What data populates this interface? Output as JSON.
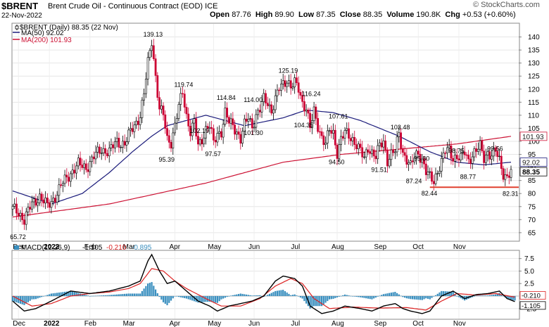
{
  "header": {
    "symbol": "$BRENT",
    "name": "Brent Crude Oil - Continuous Contract (EOD)",
    "exchange": "ICE",
    "date": "22-Nov-2022",
    "watermark": "© StockCharts.com",
    "open_label": "Open",
    "open": "87.76",
    "high_label": "High",
    "high": "89.90",
    "low_label": "Low",
    "low": "87.35",
    "close_label": "Close",
    "close": "88.35",
    "volume_label": "Volume",
    "volume": "190.8K",
    "chg_label": "Chg",
    "chg": "+0.53 (+0.60%)"
  },
  "colors": {
    "up": "#000000",
    "down": "#cc0033",
    "ma50": "#1a1a7a",
    "ma200": "#cc1133",
    "macd": "#000000",
    "signal": "#dd2222",
    "hist": "#3a8fbf",
    "support": "#e0402e"
  },
  "chart_data": [
    {
      "type": "candlestick",
      "title": "$BRENT Brent Crude Oil - Continuous Contract (EOD) ICE",
      "legend": [
        {
          "label": "$BRENT (Daily) 88.35 (22 Nov)",
          "marker": "candle"
        },
        {
          "label": "MA(50) 92.02",
          "color": "#1a1a7a"
        },
        {
          "label": "MA(200) 101.93",
          "color": "#cc1133"
        }
      ],
      "ylim": [
        62,
        145
      ],
      "yticks": [
        65,
        70,
        75,
        80,
        85,
        90,
        95,
        100,
        105,
        110,
        115,
        120,
        125,
        130,
        135,
        140
      ],
      "x_labels": [
        "Dec",
        "2022",
        "Feb",
        "Mar",
        "Apr",
        "May",
        "Jun",
        "Jul",
        "Aug",
        "Sep",
        "Oct",
        "Nov"
      ],
      "close_path": [
        [
          0,
          74
        ],
        [
          3,
          73
        ],
        [
          6,
          70
        ],
        [
          10,
          76
        ],
        [
          14,
          79
        ],
        [
          18,
          75
        ],
        [
          22,
          79
        ],
        [
          26,
          84
        ],
        [
          30,
          88
        ],
        [
          34,
          91
        ],
        [
          38,
          90
        ],
        [
          42,
          94
        ],
        [
          46,
          97
        ],
        [
          50,
          96
        ],
        [
          54,
          100
        ],
        [
          58,
          99
        ],
        [
          62,
          105
        ],
        [
          66,
          110
        ],
        [
          68,
          118
        ],
        [
          70,
          130
        ],
        [
          72,
          139
        ],
        [
          74,
          125
        ],
        [
          76,
          112
        ],
        [
          78,
          110
        ],
        [
          80,
          101
        ],
        [
          82,
          100
        ],
        [
          84,
          106
        ],
        [
          86,
          113
        ],
        [
          88,
          119
        ],
        [
          90,
          110
        ],
        [
          92,
          104
        ],
        [
          94,
          107
        ],
        [
          96,
          98
        ],
        [
          98,
          101
        ],
        [
          100,
          105
        ],
        [
          102,
          106
        ],
        [
          104,
          99
        ],
        [
          106,
          103
        ],
        [
          108,
          104
        ],
        [
          110,
          111
        ],
        [
          112,
          107
        ],
        [
          114,
          106
        ],
        [
          116,
          104
        ],
        [
          118,
          101
        ],
        [
          120,
          106
        ],
        [
          122,
          109
        ],
        [
          124,
          106
        ],
        [
          126,
          110
        ],
        [
          128,
          112
        ],
        [
          130,
          116
        ],
        [
          132,
          115
        ],
        [
          134,
          112
        ],
        [
          136,
          116
        ],
        [
          138,
          120
        ],
        [
          140,
          122
        ],
        [
          142,
          124
        ],
        [
          144,
          121
        ],
        [
          146,
          122
        ],
        [
          148,
          120
        ],
        [
          150,
          115
        ],
        [
          152,
          113
        ],
        [
          154,
          105
        ],
        [
          156,
          111
        ],
        [
          158,
          106
        ],
        [
          160,
          102
        ],
        [
          162,
          99
        ],
        [
          164,
          104
        ],
        [
          166,
          103
        ],
        [
          168,
          96
        ],
        [
          170,
          101
        ],
        [
          172,
          103
        ],
        [
          174,
          102
        ],
        [
          176,
          101
        ],
        [
          178,
          99
        ],
        [
          180,
          96
        ],
        [
          182,
          93
        ],
        [
          184,
          98
        ],
        [
          186,
          96
        ],
        [
          188,
          94
        ],
        [
          190,
          98
        ],
        [
          192,
          100
        ],
        [
          194,
          93
        ],
        [
          196,
          95
        ],
        [
          198,
          96
        ],
        [
          200,
          103
        ],
        [
          202,
          96
        ],
        [
          204,
          93
        ],
        [
          206,
          90
        ],
        [
          208,
          94
        ],
        [
          210,
          96
        ],
        [
          212,
          93
        ],
        [
          214,
          88
        ],
        [
          216,
          86
        ],
        [
          218,
          85
        ],
        [
          220,
          89
        ],
        [
          222,
          92
        ],
        [
          224,
          96
        ],
        [
          226,
          97
        ],
        [
          228,
          94
        ],
        [
          230,
          94
        ],
        [
          232,
          93
        ],
        [
          234,
          96
        ],
        [
          236,
          93
        ],
        [
          238,
          95
        ],
        [
          240,
          96
        ],
        [
          242,
          98
        ],
        [
          244,
          94
        ],
        [
          246,
          96
        ],
        [
          248,
          94
        ],
        [
          250,
          96
        ],
        [
          252,
          93
        ],
        [
          254,
          88
        ],
        [
          256,
          86
        ],
        [
          258,
          88
        ]
      ],
      "ma50": [
        [
          0,
          81
        ],
        [
          20,
          76
        ],
        [
          36,
          80
        ],
        [
          50,
          88
        ],
        [
          62,
          96
        ],
        [
          72,
          102
        ],
        [
          80,
          106
        ],
        [
          100,
          110
        ],
        [
          120,
          106
        ],
        [
          140,
          109
        ],
        [
          152,
          112
        ],
        [
          166,
          111
        ],
        [
          180,
          108
        ],
        [
          200,
          102
        ],
        [
          216,
          96
        ],
        [
          230,
          92
        ],
        [
          244,
          91
        ],
        [
          258,
          92.02
        ]
      ],
      "ma200": [
        [
          0,
          71
        ],
        [
          50,
          76
        ],
        [
          100,
          84
        ],
        [
          140,
          92
        ],
        [
          170,
          95
        ],
        [
          200,
          97
        ],
        [
          230,
          99
        ],
        [
          258,
          101.93
        ]
      ],
      "annotations": [
        {
          "text": "65.72",
          "x": 3,
          "y": 65.72
        },
        {
          "text": "139.13",
          "x": 72,
          "y": 139.13
        },
        {
          "text": "95.39",
          "x": 80,
          "y": 95.39
        },
        {
          "text": "119.74",
          "x": 88,
          "y": 119.74
        },
        {
          "text": "102.19",
          "x": 96,
          "y": 102.19
        },
        {
          "text": "97.57",
          "x": 104,
          "y": 97.57
        },
        {
          "text": "114.84",
          "x": 110,
          "y": 114.84
        },
        {
          "text": "114.00",
          "x": 124,
          "y": 114.0
        },
        {
          "text": "101.30",
          "x": 124,
          "y": 101.3
        },
        {
          "text": "125.19",
          "x": 142,
          "y": 125.19
        },
        {
          "text": "116.24",
          "x": 154,
          "y": 116.24
        },
        {
          "text": "104.35",
          "x": 150,
          "y": 104.35
        },
        {
          "text": "107.61",
          "x": 168,
          "y": 107.61
        },
        {
          "text": "94.50",
          "x": 168,
          "y": 94.5
        },
        {
          "text": "91.51",
          "x": 190,
          "y": 91.51
        },
        {
          "text": "103.48",
          "x": 200,
          "y": 103.48
        },
        {
          "text": "95.80",
          "x": 212,
          "y": 95.8
        },
        {
          "text": "87.24",
          "x": 208,
          "y": 87.24
        },
        {
          "text": "82.44",
          "x": 216,
          "y": 82.44
        },
        {
          "text": "98.75",
          "x": 230,
          "y": 98.75
        },
        {
          "text": "88.77",
          "x": 236,
          "y": 88.77
        },
        {
          "text": "99.56",
          "x": 250,
          "y": 99.56
        },
        {
          "text": "82.31",
          "x": 258,
          "y": 82.31
        }
      ],
      "support_line": {
        "y": 82.4,
        "x_start": 216,
        "x_end": 262
      },
      "price_tags": [
        {
          "text": "101.93",
          "y": 101.93,
          "series": "ma200"
        },
        {
          "text": "92.02",
          "y": 92.02,
          "series": "ma50"
        },
        {
          "text": "88.35",
          "y": 88.35,
          "series": "price"
        }
      ]
    },
    {
      "type": "macd",
      "legend": {
        "label": "MACD(12,26,9)",
        "macd": "-1.105",
        "signal": "-0.210",
        "hist": "-0.895"
      },
      "ylim": [
        -4.5,
        9
      ],
      "yticks": [
        -2.5,
        2.5,
        5.0,
        7.5
      ],
      "ytick_labels": [
        "-2.5",
        "2.5",
        "5.0",
        "7.5"
      ],
      "value_tags": [
        {
          "text": "-0.210",
          "y": -0.21,
          "series": "signal"
        },
        {
          "text": "-1.105",
          "y": -1.105,
          "series": "macd"
        }
      ],
      "macd": [
        [
          0,
          -1
        ],
        [
          6,
          -3
        ],
        [
          12,
          -2.5
        ],
        [
          20,
          -1
        ],
        [
          30,
          1
        ],
        [
          40,
          0.5
        ],
        [
          50,
          1
        ],
        [
          60,
          2
        ],
        [
          66,
          3
        ],
        [
          70,
          7
        ],
        [
          72,
          8.3
        ],
        [
          76,
          5
        ],
        [
          80,
          2.5
        ],
        [
          84,
          3
        ],
        [
          90,
          1
        ],
        [
          96,
          -1
        ],
        [
          102,
          -2
        ],
        [
          106,
          -3
        ],
        [
          112,
          -2
        ],
        [
          118,
          -1.5
        ],
        [
          124,
          -1
        ],
        [
          130,
          0
        ],
        [
          136,
          3
        ],
        [
          140,
          4
        ],
        [
          146,
          3.5
        ],
        [
          150,
          2
        ],
        [
          154,
          -2
        ],
        [
          160,
          -3.5
        ],
        [
          166,
          -3
        ],
        [
          172,
          -2
        ],
        [
          180,
          -2.5
        ],
        [
          186,
          -3
        ],
        [
          192,
          -2
        ],
        [
          198,
          -1.5
        ],
        [
          202,
          -2.5
        ],
        [
          206,
          -3
        ],
        [
          212,
          -3.5
        ],
        [
          216,
          -3
        ],
        [
          222,
          0
        ],
        [
          228,
          1
        ],
        [
          234,
          -0.5
        ],
        [
          240,
          0.3
        ],
        [
          246,
          0.5
        ],
        [
          252,
          1
        ],
        [
          256,
          -0.5
        ],
        [
          260,
          -1.105
        ]
      ],
      "signal": [
        [
          0,
          0
        ],
        [
          10,
          -2
        ],
        [
          20,
          -1.5
        ],
        [
          30,
          0
        ],
        [
          40,
          0.5
        ],
        [
          50,
          0.8
        ],
        [
          60,
          1.5
        ],
        [
          66,
          2.5
        ],
        [
          72,
          5.5
        ],
        [
          78,
          5
        ],
        [
          84,
          3
        ],
        [
          90,
          1.5
        ],
        [
          100,
          -0.5
        ],
        [
          108,
          -2
        ],
        [
          118,
          -2
        ],
        [
          128,
          -0.5
        ],
        [
          136,
          2
        ],
        [
          144,
          3.5
        ],
        [
          150,
          2.5
        ],
        [
          156,
          -0.5
        ],
        [
          164,
          -2.5
        ],
        [
          176,
          -2.2
        ],
        [
          190,
          -2.4
        ],
        [
          204,
          -2.3
        ],
        [
          214,
          -2.8
        ],
        [
          222,
          -1
        ],
        [
          230,
          0.5
        ],
        [
          240,
          0.2
        ],
        [
          250,
          0.5
        ],
        [
          260,
          -0.21
        ]
      ],
      "x_labels": [
        "Dec",
        "2022",
        "Feb",
        "Mar",
        "Apr",
        "May",
        "Jun",
        "Jul",
        "Aug",
        "Sep",
        "Oct",
        "Nov"
      ]
    }
  ]
}
